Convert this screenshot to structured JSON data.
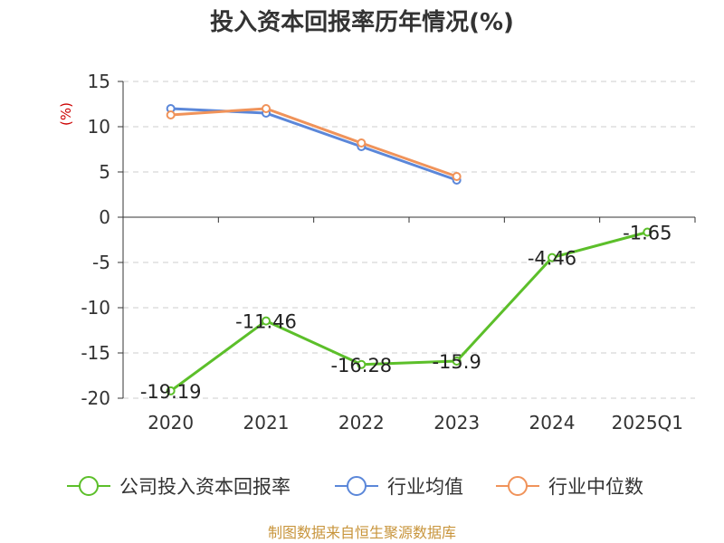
{
  "chart_data": {
    "type": "line",
    "title": "投入资本回报率历年情况(%)",
    "ylabel": "(%)",
    "categories": [
      "2020",
      "2021",
      "2022",
      "2023",
      "2024",
      "2025Q1"
    ],
    "yticks": [
      "15",
      "10",
      "5",
      "0",
      "-5",
      "-10",
      "-15",
      "-20"
    ],
    "ylim": [
      -20,
      15
    ],
    "grid": true,
    "legend_position": "bottom",
    "series": [
      {
        "name": "公司投入资本回报率",
        "color": "#5cbf2a",
        "values": [
          -19.19,
          -11.46,
          -16.28,
          -15.9,
          -4.46,
          -1.65
        ],
        "labels": [
          "-19.19",
          "-11.46",
          "-16.28",
          "-15.9",
          "-4.46",
          "-1.65"
        ]
      },
      {
        "name": "行业均值",
        "color": "#5b87d9",
        "values": [
          12.0,
          11.5,
          7.8,
          4.1,
          null,
          null
        ]
      },
      {
        "name": "行业中位数",
        "color": "#f0935a",
        "values": [
          11.3,
          12.0,
          8.2,
          4.5,
          null,
          null
        ]
      }
    ]
  },
  "footer": "制图数据来自恒生聚源数据库"
}
